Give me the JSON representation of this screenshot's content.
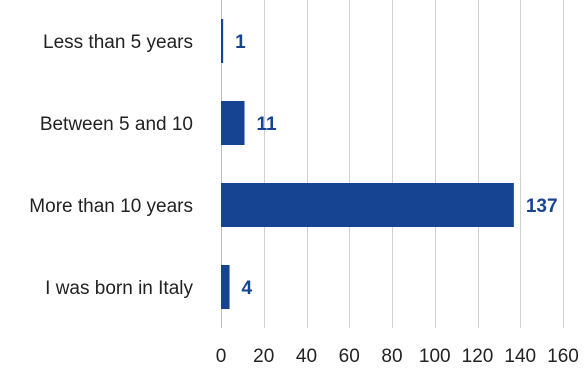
{
  "chart_data": {
    "type": "bar",
    "orientation": "horizontal",
    "categories": [
      "Less than 5 years",
      "Between 5 and 10",
      "More than 10 years",
      "I was born in Italy"
    ],
    "values": [
      1,
      11,
      137,
      4
    ],
    "xlim": [
      0,
      160
    ],
    "xticks": [
      0,
      20,
      40,
      60,
      80,
      100,
      120,
      140,
      160
    ],
    "tick_labels": [
      "0",
      "20",
      "40",
      "60",
      "80",
      "100",
      "120",
      "140",
      "160"
    ],
    "data_labels": [
      "1",
      "11",
      "137",
      "4"
    ],
    "grid": true,
    "colors": {
      "bar": "#174393",
      "label": "#174393"
    }
  }
}
